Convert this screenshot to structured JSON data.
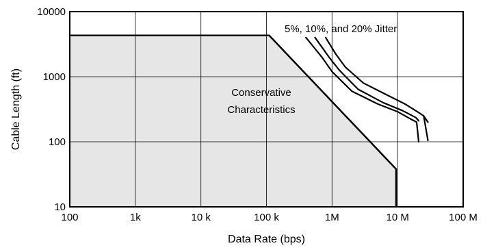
{
  "chart_data": {
    "type": "line",
    "title": "",
    "xlabel": "Data  Rate (bps)",
    "ylabel": "Cable Length (ft)",
    "x_scale": "log",
    "y_scale": "log",
    "xlim": [
      100,
      100000000
    ],
    "ylim": [
      10,
      10000
    ],
    "grid": true,
    "legend": "none",
    "x_ticks": [
      {
        "value": 100,
        "label": "100"
      },
      {
        "value": 1000,
        "label": "1k"
      },
      {
        "value": 10000,
        "label": "10 k"
      },
      {
        "value": 100000,
        "label": "100 k"
      },
      {
        "value": 1000000,
        "label": "1M"
      },
      {
        "value": 10000000,
        "label": "10 M"
      },
      {
        "value": 100000000,
        "label": "100 M"
      }
    ],
    "y_ticks": [
      {
        "value": 10,
        "label": "10"
      },
      {
        "value": 100,
        "label": "100"
      },
      {
        "value": 1000,
        "label": "1000"
      },
      {
        "value": 10000,
        "label": "10000"
      }
    ],
    "annotations": {
      "region": [
        "Conservative",
        "Characteristics"
      ],
      "curves": "5%, 10%, and 20% Jitter"
    },
    "colors": {
      "region_fill": "#e6e6e6",
      "line": "#000000",
      "grid": "#000000"
    },
    "region": {
      "points": [
        {
          "x": 100,
          "y": 4300
        },
        {
          "x": 110000,
          "y": 4300
        },
        {
          "x": 9500000,
          "y": 38
        },
        {
          "x": 9500000,
          "y": 10
        }
      ]
    },
    "series": [
      {
        "points": [
          {
            "x": 400000,
            "y": 4000
          },
          {
            "x": 700000,
            "y": 2000
          },
          {
            "x": 1000000,
            "y": 1200
          },
          {
            "x": 2000000,
            "y": 600
          },
          {
            "x": 5000000,
            "y": 380
          },
          {
            "x": 10000000,
            "y": 290
          },
          {
            "x": 17000000,
            "y": 215
          },
          {
            "x": 19500000,
            "y": 200
          },
          {
            "x": 21000000,
            "y": 100
          }
        ]
      },
      {
        "points": [
          {
            "x": 550000,
            "y": 4000
          },
          {
            "x": 900000,
            "y": 2000
          },
          {
            "x": 1300000,
            "y": 1250
          },
          {
            "x": 2500000,
            "y": 640
          },
          {
            "x": 6000000,
            "y": 400
          },
          {
            "x": 12000000,
            "y": 300
          },
          {
            "x": 19000000,
            "y": 235
          },
          {
            "x": 21000000,
            "y": 210
          }
        ]
      },
      {
        "points": [
          {
            "x": 800000,
            "y": 4000
          },
          {
            "x": 1150000,
            "y": 2200
          },
          {
            "x": 1600000,
            "y": 1400
          },
          {
            "x": 3000000,
            "y": 800
          },
          {
            "x": 7000000,
            "y": 520
          },
          {
            "x": 13000000,
            "y": 380
          },
          {
            "x": 20000000,
            "y": 290
          },
          {
            "x": 25000000,
            "y": 250
          },
          {
            "x": 29000000,
            "y": 200
          }
        ]
      }
    ],
    "extra_segments": [
      {
        "points": [
          {
            "x": 25000000,
            "y": 250
          },
          {
            "x": 29000000,
            "y": 105
          }
        ]
      }
    ]
  }
}
